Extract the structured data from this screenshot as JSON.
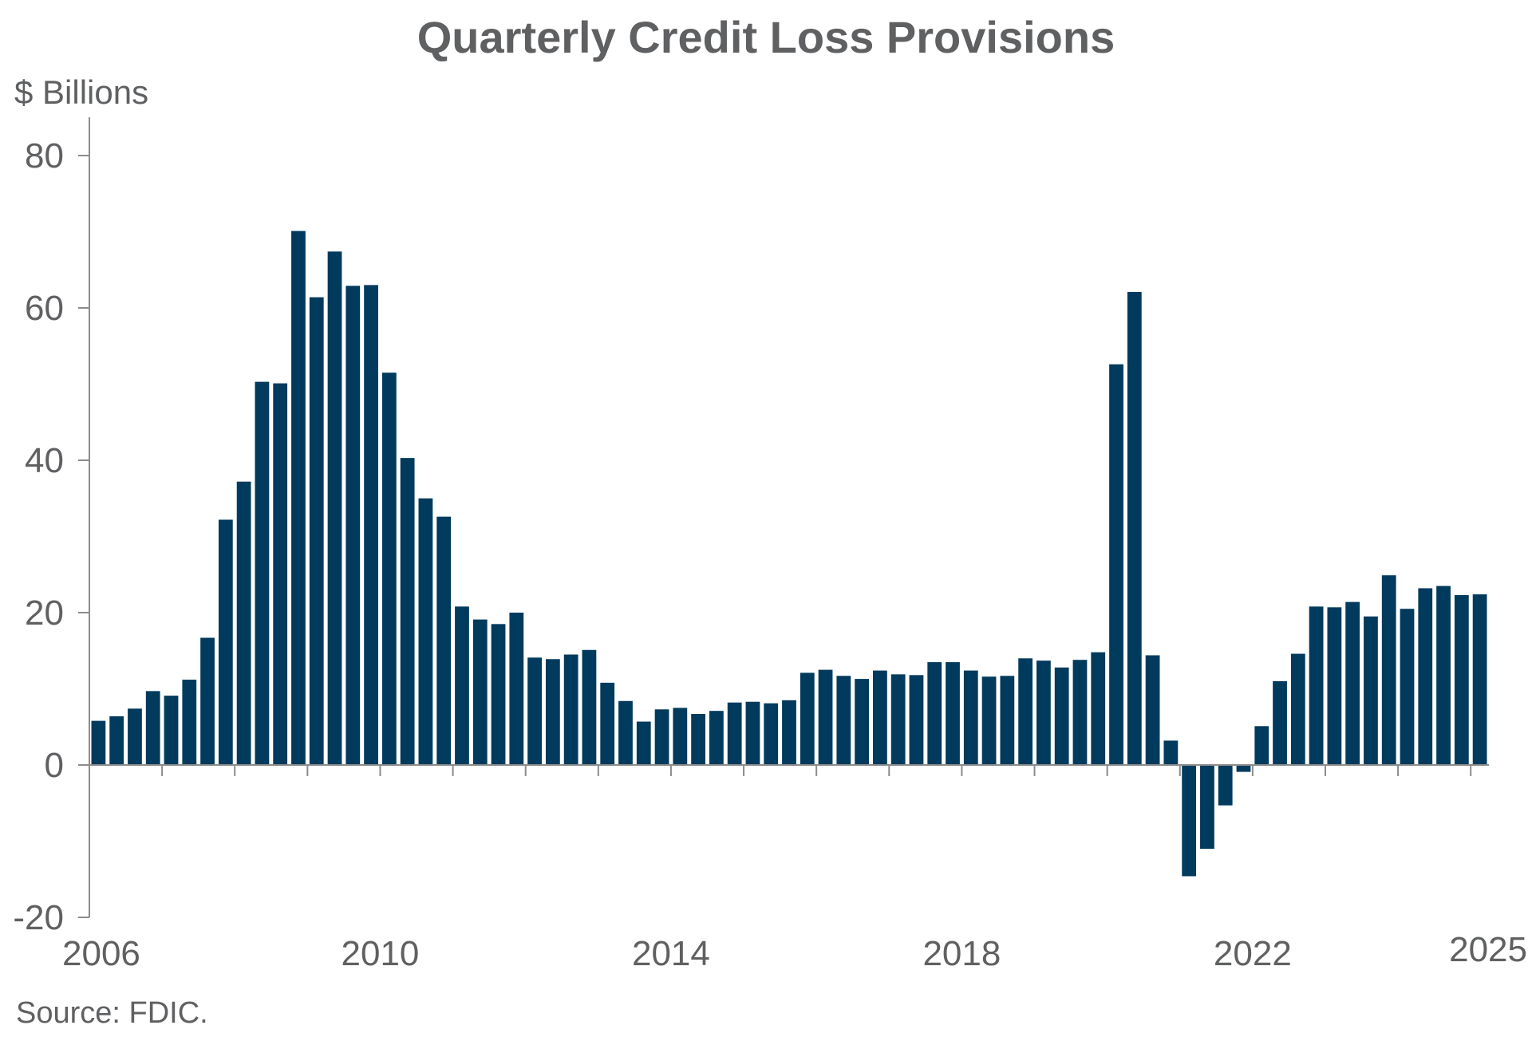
{
  "chart_data": {
    "type": "bar",
    "title": "Quarterly Credit Loss Provisions",
    "ylabel": "$ Billions",
    "source": "Source: FDIC.",
    "ylim": [
      -20,
      80
    ],
    "yticks": [
      80,
      60,
      40,
      20,
      0,
      -20
    ],
    "xtick_labels": [
      "2006",
      "2010",
      "2014",
      "2018",
      "2022",
      "2025"
    ],
    "grid": false,
    "legend": "none",
    "bar_color": "#003a5d",
    "categories": [
      "2006 Q1",
      "2006 Q2",
      "2006 Q3",
      "2006 Q4",
      "2007 Q1",
      "2007 Q2",
      "2007 Q3",
      "2007 Q4",
      "2008 Q1",
      "2008 Q2",
      "2008 Q3",
      "2008 Q4",
      "2009 Q1",
      "2009 Q2",
      "2009 Q3",
      "2009 Q4",
      "2010 Q1",
      "2010 Q2",
      "2010 Q3",
      "2010 Q4",
      "2011 Q1",
      "2011 Q2",
      "2011 Q3",
      "2011 Q4",
      "2012 Q1",
      "2012 Q2",
      "2012 Q3",
      "2012 Q4",
      "2013 Q1",
      "2013 Q2",
      "2013 Q3",
      "2013 Q4",
      "2014 Q1",
      "2014 Q2",
      "2014 Q3",
      "2014 Q4",
      "2015 Q1",
      "2015 Q2",
      "2015 Q3",
      "2015 Q4",
      "2016 Q1",
      "2016 Q2",
      "2016 Q3",
      "2016 Q4",
      "2017 Q1",
      "2017 Q2",
      "2017 Q3",
      "2017 Q4",
      "2018 Q1",
      "2018 Q2",
      "2018 Q3",
      "2018 Q4",
      "2019 Q1",
      "2019 Q2",
      "2019 Q3",
      "2019 Q4",
      "2020 Q1",
      "2020 Q2",
      "2020 Q3",
      "2020 Q4",
      "2021 Q1",
      "2021 Q2",
      "2021 Q3",
      "2021 Q4",
      "2022 Q1",
      "2022 Q2",
      "2022 Q3",
      "2022 Q4",
      "2023 Q1",
      "2023 Q2",
      "2023 Q3",
      "2023 Q4",
      "2024 Q1",
      "2024 Q2",
      "2024 Q3",
      "2024 Q4",
      "2025 Q1"
    ],
    "values": [
      5.8,
      6.4,
      7.4,
      9.7,
      9.1,
      11.2,
      16.7,
      32.2,
      37.2,
      50.3,
      50.1,
      70.1,
      61.4,
      67.4,
      62.9,
      63.0,
      51.5,
      40.3,
      35.0,
      32.6,
      20.8,
      19.1,
      18.5,
      20.0,
      14.1,
      13.9,
      14.5,
      15.1,
      10.8,
      8.4,
      5.7,
      7.3,
      7.5,
      6.7,
      7.1,
      8.2,
      8.3,
      8.1,
      8.5,
      12.1,
      12.5,
      11.7,
      11.3,
      12.4,
      11.9,
      11.8,
      13.5,
      13.5,
      12.4,
      11.6,
      11.7,
      14.0,
      13.7,
      12.8,
      13.8,
      14.8,
      52.6,
      62.1,
      14.4,
      3.2,
      -14.6,
      -11.0,
      -5.3,
      -0.9,
      5.1,
      11.0,
      14.6,
      20.8,
      20.7,
      21.4,
      19.5,
      24.9,
      20.5,
      23.2,
      23.5,
      22.3,
      22.4
    ]
  }
}
